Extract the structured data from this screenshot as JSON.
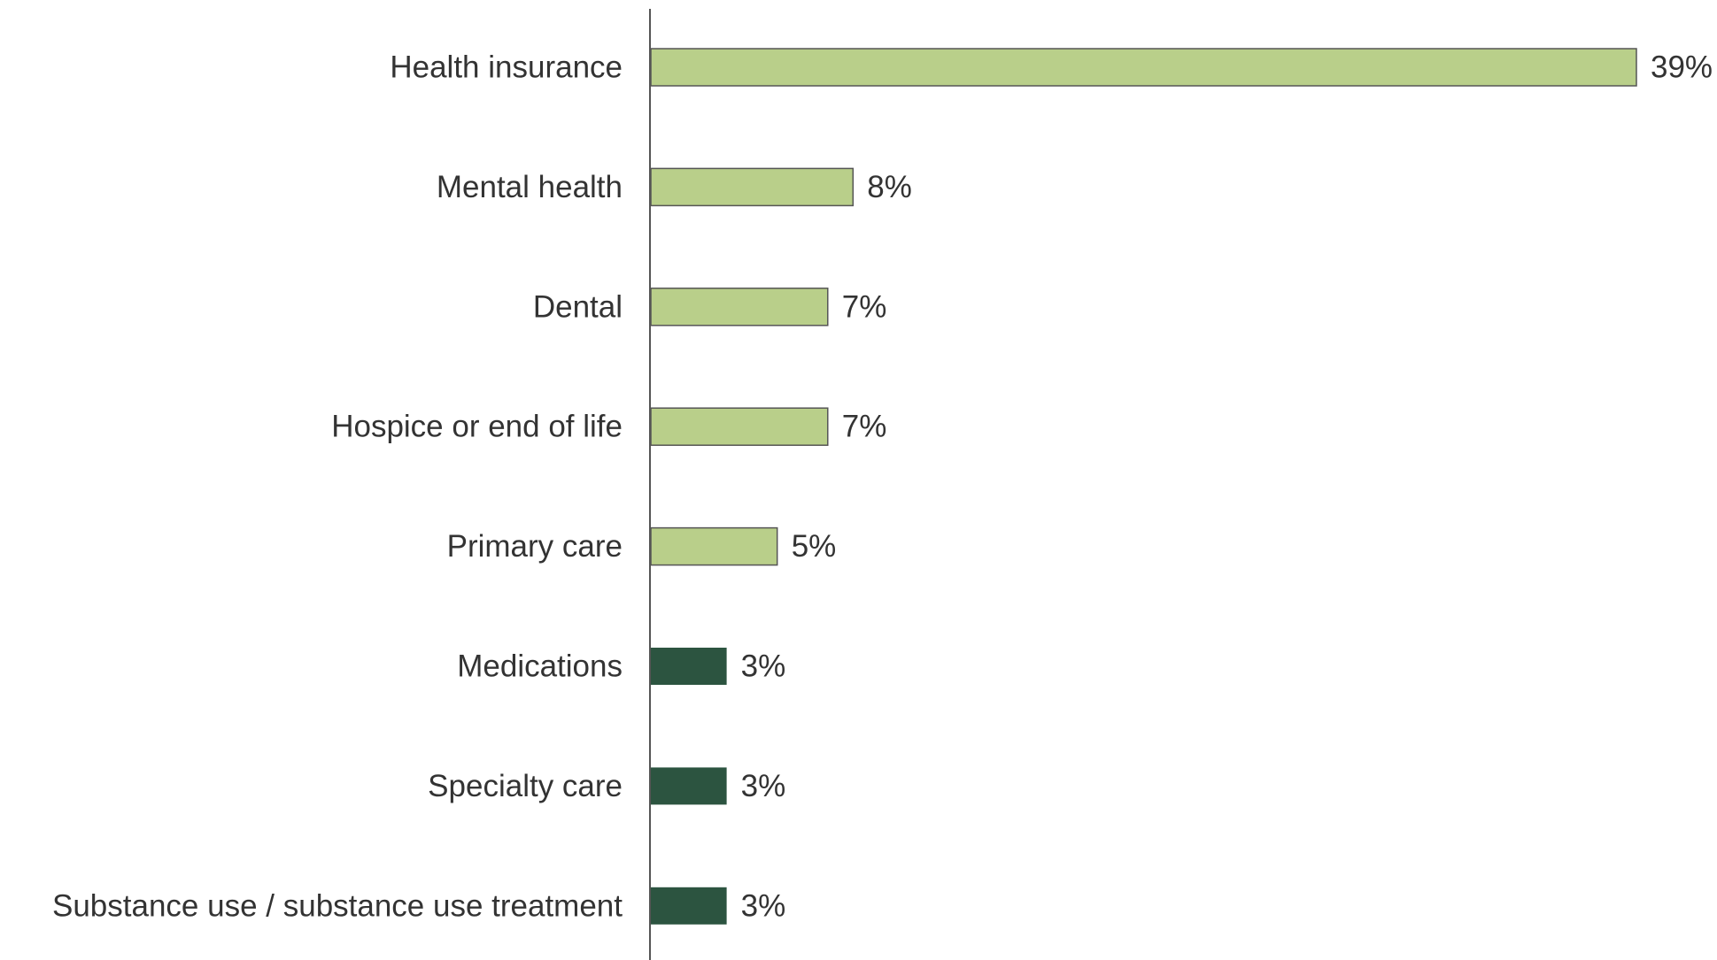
{
  "chart_data": {
    "type": "bar",
    "orientation": "horizontal",
    "title": "",
    "xlabel": "",
    "ylabel": "",
    "categories": [
      "Health insurance",
      "Mental health",
      "Dental",
      "Hospice or end of life",
      "Primary care",
      "Medications",
      "Specialty care",
      "Substance use / substance use treatment"
    ],
    "values": [
      39,
      8,
      7,
      7,
      5,
      3,
      3,
      3
    ],
    "value_labels": [
      "39%",
      "8%",
      "7%",
      "7%",
      "5%",
      "3%",
      "3%",
      "3%"
    ],
    "bar_groups": [
      "light",
      "light",
      "light",
      "light",
      "light",
      "dark",
      "dark",
      "dark"
    ],
    "xlim": [
      0,
      39
    ],
    "grid": false,
    "legend": "none",
    "colors": {
      "light": "#b9cf8a",
      "dark": "#2c5440",
      "bar_outline": "#555555",
      "axis": "#555555",
      "text": "#333333"
    }
  }
}
